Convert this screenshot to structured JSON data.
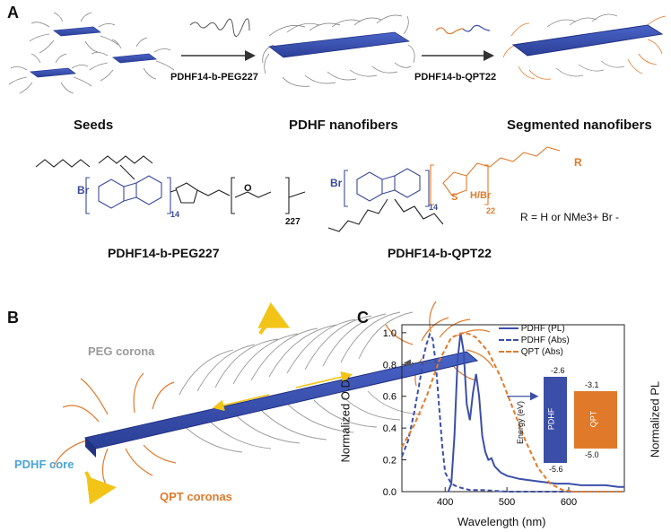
{
  "panelA": {
    "letter": "A",
    "arrow1_label": "PDHF14-b-PEG227",
    "arrow2_label": "PDHF14-b-QPT22",
    "caption_seeds": "Seeds",
    "caption_pdhf": "PDHF nanofibers",
    "caption_segmented": "Segmented nanofibers",
    "chem1": {
      "br": "Br",
      "n14": "14",
      "n227": "227",
      "o": "O",
      "name": "PDHF14-b-PEG227"
    },
    "chem2": {
      "br": "Br",
      "n14": "14",
      "n22": "22",
      "r": "R",
      "s": "S",
      "hbr": "H/Br",
      "r_def": "R = H or NMe3+ Br -",
      "name": "PDHF14-b-QPT22"
    }
  },
  "panelB": {
    "letter": "B",
    "peg_label": "PEG corona",
    "core_label": "PDHF core",
    "qpt_label": "QPT coronas"
  },
  "panelC": {
    "letter": "C",
    "colors": {
      "blue": "#3b4fa8",
      "orange": "#e07a2a"
    },
    "chart_data": {
      "type": "line",
      "xlabel": "Wavelength (nm)",
      "ylabel_left": "Normalized O.D.",
      "ylabel_right": "Normalized PL",
      "xlim": [
        330,
        690
      ],
      "ylim": [
        0,
        1.05
      ],
      "xticks": [
        400,
        500,
        600
      ],
      "yticks": [
        0.0,
        0.2,
        0.4,
        0.6,
        0.8,
        1.0
      ],
      "series": [
        {
          "name": "PDHF (PL)",
          "style": "solid",
          "color": "#3b4fa8",
          "x": [
            405,
            410,
            415,
            420,
            425,
            430,
            435,
            440,
            445,
            450,
            455,
            460,
            465,
            470,
            475,
            480,
            490,
            500,
            520,
            540,
            560,
            580,
            600,
            620,
            640,
            660,
            680,
            690
          ],
          "y": [
            0.0,
            0.05,
            0.35,
            0.82,
            1.0,
            0.88,
            0.55,
            0.45,
            0.62,
            0.74,
            0.6,
            0.35,
            0.25,
            0.2,
            0.21,
            0.16,
            0.12,
            0.1,
            0.08,
            0.07,
            0.06,
            0.05,
            0.05,
            0.04,
            0.04,
            0.04,
            0.03,
            0.03
          ]
        },
        {
          "name": "PDHF (Abs)",
          "style": "dashed",
          "color": "#3b4fa8",
          "x": [
            330,
            340,
            350,
            360,
            365,
            370,
            375,
            380,
            385,
            390,
            395,
            400,
            410,
            420,
            430,
            440,
            460,
            500,
            690
          ],
          "y": [
            0.22,
            0.32,
            0.5,
            0.72,
            0.85,
            0.93,
            0.99,
            0.96,
            0.8,
            0.55,
            0.3,
            0.12,
            0.05,
            0.03,
            0.02,
            0.01,
            0.01,
            0.0,
            0.0
          ]
        },
        {
          "name": "QPT (Abs)",
          "style": "dashed",
          "color": "#e07a2a",
          "x": [
            330,
            350,
            370,
            390,
            410,
            430,
            440,
            450,
            470,
            490,
            510,
            530,
            550,
            570,
            590,
            610,
            690
          ],
          "y": [
            0.28,
            0.42,
            0.6,
            0.82,
            0.97,
            1.0,
            0.99,
            0.97,
            0.88,
            0.72,
            0.52,
            0.32,
            0.15,
            0.05,
            0.01,
            0.0,
            0.0
          ]
        }
      ],
      "legend_position": "top-right",
      "inset": {
        "ylabel": "Energy (eV)",
        "pdhf_label": "PDHF",
        "qpt_label": "QPT",
        "pdhf_top": "-2.6",
        "pdhf_bottom": "-5.6",
        "qpt_top": "-3.1",
        "qpt_bottom": "-5.0"
      }
    }
  }
}
